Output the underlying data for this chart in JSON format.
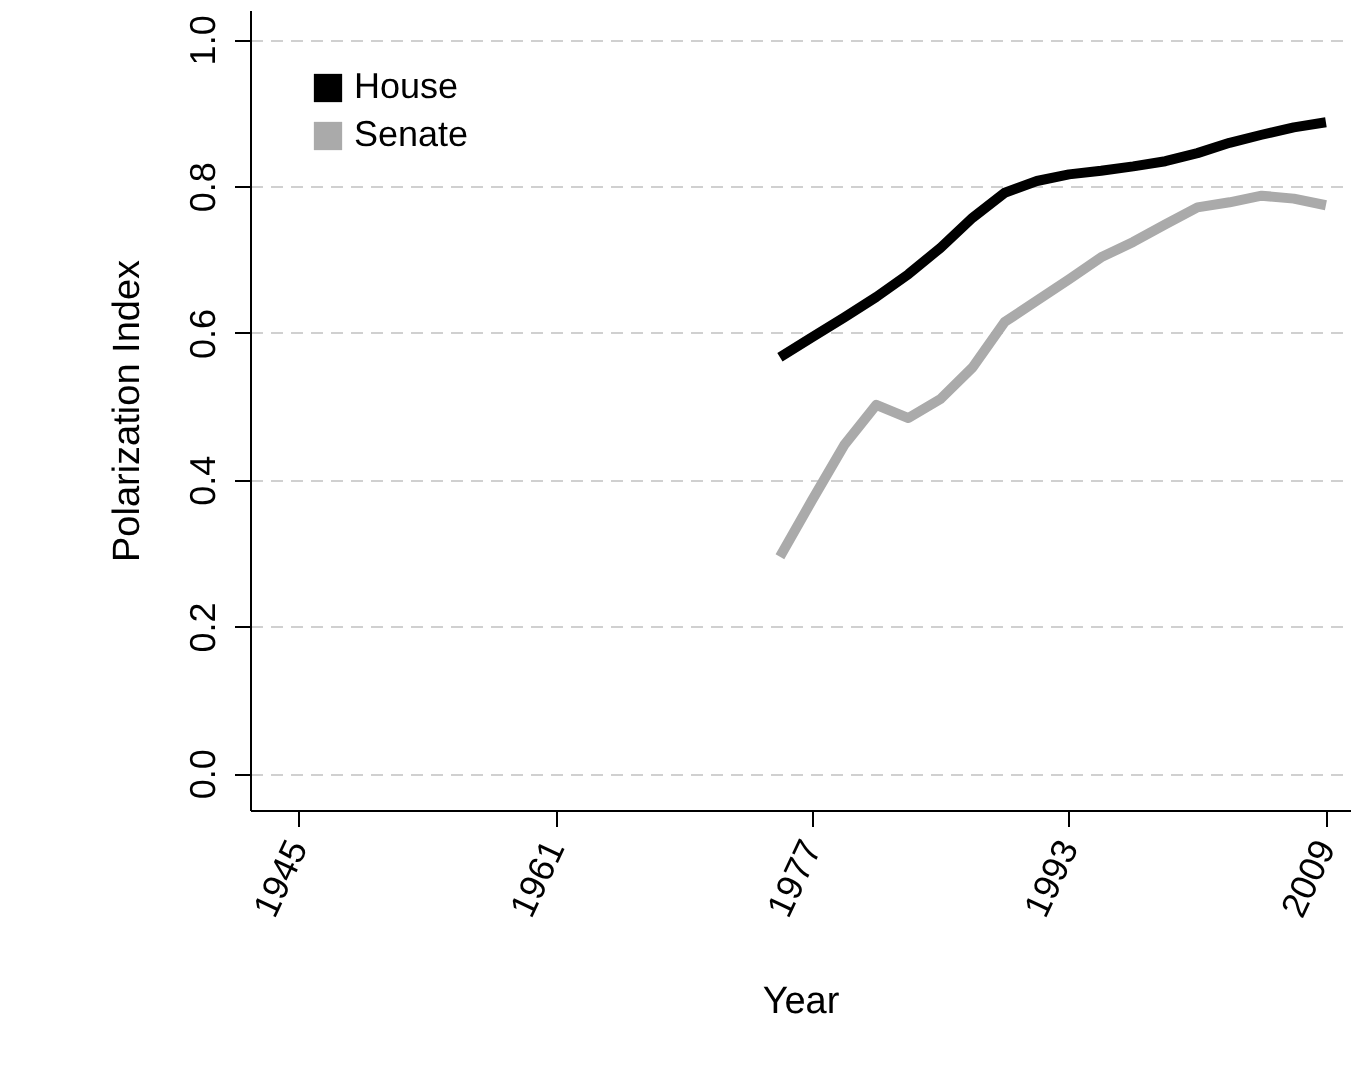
{
  "chart_data": {
    "type": "line",
    "xlabel": "Year",
    "ylabel": "Polarization Index",
    "x": [
      1975,
      1977,
      1979,
      1981,
      1983,
      1985,
      1987,
      1989,
      1991,
      1993,
      1995,
      1997,
      1999,
      2001,
      2003,
      2005,
      2007,
      2009
    ],
    "series": [
      {
        "name": "House",
        "color": "#000000",
        "values": [
          0.567,
          0.594,
          0.621,
          0.649,
          0.68,
          0.716,
          0.757,
          0.791,
          0.807,
          0.816,
          0.821,
          0.827,
          0.834,
          0.845,
          0.859,
          0.87,
          0.88,
          0.887
        ]
      },
      {
        "name": "Senate",
        "color": "#aaaaaa",
        "values": [
          0.295,
          0.372,
          0.447,
          0.502,
          0.484,
          0.51,
          0.553,
          0.615,
          0.644,
          0.673,
          0.703,
          0.724,
          0.748,
          0.771,
          0.778,
          0.787,
          0.783,
          0.774
        ]
      }
    ],
    "xlim": [
      1942,
      2010.5
    ],
    "xticks": [
      1945,
      1961,
      1977,
      1993,
      2009
    ],
    "ylim": [
      -0.05,
      1.04
    ],
    "yticks": [
      {
        "value": 0,
        "label": "0.0"
      },
      {
        "value": 0.2,
        "label": "0.2"
      },
      {
        "value": 0.4,
        "label": "0.4"
      },
      {
        "value": 0.6,
        "label": "0.6"
      },
      {
        "value": 0.8,
        "label": "0.8"
      },
      {
        "value": 1,
        "label": "1.0"
      }
    ],
    "grid": "y",
    "legend": "top left"
  }
}
